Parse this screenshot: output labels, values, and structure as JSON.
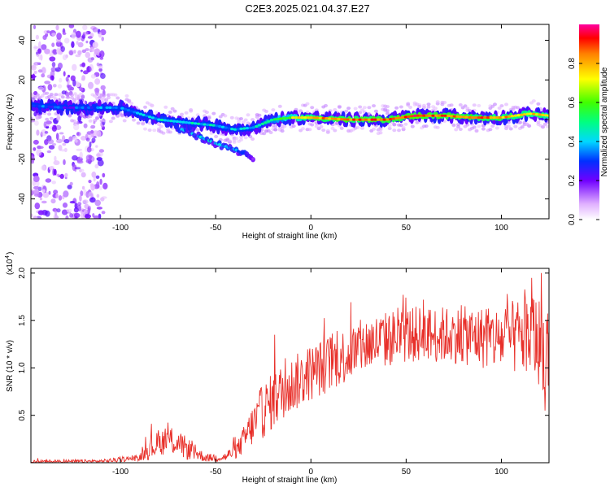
{
  "title": "C2E3.2025.021.04.37.E27",
  "colors": {
    "snr_line": "#e8302a",
    "axis": "#000000",
    "background": "#ffffff"
  },
  "chart_data": [
    {
      "type": "heatmap",
      "xlabel": "Height of straight line (km)",
      "ylabel": "Frequency (Hz)",
      "xlim": [
        -147,
        125
      ],
      "ylim": [
        -50,
        48
      ],
      "x_ticks": [
        -100,
        -50,
        0,
        50,
        100
      ],
      "y_ticks": [
        -40,
        -20,
        0,
        20,
        40
      ],
      "colorbar": {
        "label": "Normalized spectral amplitude",
        "range": [
          0,
          1
        ],
        "ticks": [
          0.0,
          0.2,
          0.4,
          0.6,
          0.8
        ],
        "tick_labels": [
          "0.0",
          "0.2",
          "0.4",
          "0.6",
          "0.8"
        ]
      },
      "ridge": [
        {
          "x": -145,
          "y": 7,
          "amp": 0.3
        },
        {
          "x": -130,
          "y": 6,
          "amp": 0.25
        },
        {
          "x": -115,
          "y": 6,
          "amp": 0.3
        },
        {
          "x": -100,
          "y": 6,
          "amp": 0.35
        },
        {
          "x": -90,
          "y": 3,
          "amp": 0.35
        },
        {
          "x": -80,
          "y": 0,
          "amp": 0.4
        },
        {
          "x": -70,
          "y": -1,
          "amp": 0.4
        },
        {
          "x": -60,
          "y": -2,
          "amp": 0.4
        },
        {
          "x": -50,
          "y": -3,
          "amp": 0.4
        },
        {
          "x": -40,
          "y": -5,
          "amp": 0.35
        },
        {
          "x": -30,
          "y": -4,
          "amp": 0.4
        },
        {
          "x": -20,
          "y": 0,
          "amp": 0.5
        },
        {
          "x": -10,
          "y": 1,
          "amp": 0.65
        },
        {
          "x": 0,
          "y": 1,
          "amp": 0.8
        },
        {
          "x": 20,
          "y": 0,
          "amp": 0.85
        },
        {
          "x": 40,
          "y": 0,
          "amp": 0.85
        },
        {
          "x": 55,
          "y": 2,
          "amp": 0.9
        },
        {
          "x": 70,
          "y": 2,
          "amp": 0.85
        },
        {
          "x": 85,
          "y": 1,
          "amp": 0.85
        },
        {
          "x": 100,
          "y": 1,
          "amp": 0.8
        },
        {
          "x": 115,
          "y": 3,
          "amp": 0.75
        },
        {
          "x": 125,
          "y": 2,
          "amp": 0.7
        }
      ],
      "secondary_branch": [
        {
          "x": -70,
          "y": -4,
          "amp": 0.3
        },
        {
          "x": -60,
          "y": -8,
          "amp": 0.35
        },
        {
          "x": -50,
          "y": -12,
          "amp": 0.35
        },
        {
          "x": -40,
          "y": -15,
          "amp": 0.3
        },
        {
          "x": -30,
          "y": -20,
          "amp": 0.15
        }
      ],
      "scatter_region": {
        "x": [
          -147,
          -108
        ],
        "y": [
          -50,
          48
        ],
        "amp": 0.12
      }
    },
    {
      "type": "line",
      "xlabel": "Height of straight line (km)",
      "ylabel": "SNR (10 * v/v)",
      "multiplier_label": "(x10",
      "multiplier_exponent": "4",
      "xlim": [
        -147,
        125
      ],
      "ylim": [
        0,
        2.05
      ],
      "x_ticks": [
        -100,
        -50,
        0,
        50,
        100
      ],
      "y_ticks": [
        0.5,
        1.0,
        1.5,
        2.0
      ],
      "y_tick_labels": [
        "0.5",
        "1.0",
        "1.5",
        "2.0"
      ],
      "series": [
        {
          "envelope": [
            {
              "x": -147,
              "base": 0.01,
              "noise": 0.02
            },
            {
              "x": -110,
              "base": 0.015,
              "noise": 0.02
            },
            {
              "x": -90,
              "base": 0.05,
              "noise": 0.03
            },
            {
              "x": -85,
              "base": 0.15,
              "noise": 0.12
            },
            {
              "x": -75,
              "base": 0.25,
              "noise": 0.15
            },
            {
              "x": -65,
              "base": 0.15,
              "noise": 0.12
            },
            {
              "x": -55,
              "base": 0.05,
              "noise": 0.04
            },
            {
              "x": -45,
              "base": 0.06,
              "noise": 0.05
            },
            {
              "x": -38,
              "base": 0.15,
              "noise": 0.1
            },
            {
              "x": -32,
              "base": 0.35,
              "noise": 0.2
            },
            {
              "x": -25,
              "base": 0.55,
              "noise": 0.3
            },
            {
              "x": -15,
              "base": 0.75,
              "noise": 0.3
            },
            {
              "x": 0,
              "base": 0.95,
              "noise": 0.3
            },
            {
              "x": 15,
              "base": 1.1,
              "noise": 0.3
            },
            {
              "x": 30,
              "base": 1.25,
              "noise": 0.3
            },
            {
              "x": 50,
              "base": 1.35,
              "noise": 0.3
            },
            {
              "x": 75,
              "base": 1.35,
              "noise": 0.3
            },
            {
              "x": 100,
              "base": 1.3,
              "noise": 0.35
            },
            {
              "x": 115,
              "base": 1.35,
              "noise": 0.45
            },
            {
              "x": 125,
              "base": 1.2,
              "noise": 0.5
            }
          ],
          "peaks": [
            {
              "x": -19,
              "y": 1.35
            },
            {
              "x": 15,
              "y": 0.95
            },
            {
              "x": 59,
              "y": 1.72
            },
            {
              "x": 103,
              "y": 1.78
            },
            {
              "x": 116,
              "y": 1.95
            },
            {
              "x": 121,
              "y": 2.0
            },
            {
              "x": 123,
              "y": 0.55
            },
            {
              "x": 92,
              "y": 1.62
            }
          ]
        }
      ]
    }
  ]
}
